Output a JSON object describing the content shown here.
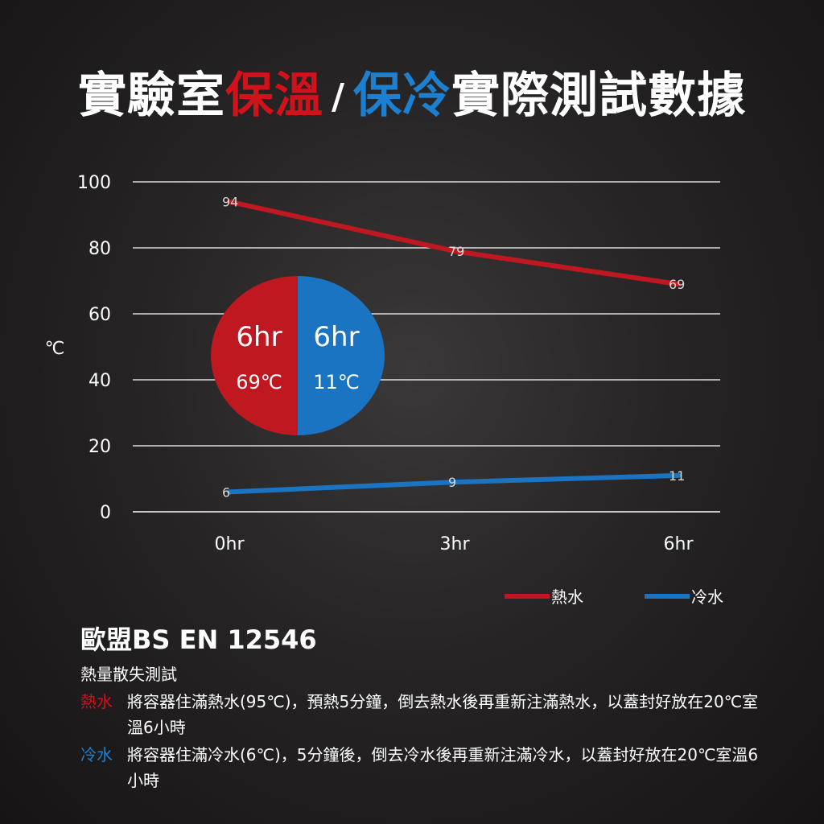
{
  "title": {
    "part1": "實驗室",
    "part2": "保溫",
    "slash": "/",
    "part3": "保冷",
    "part4": "實際測試數據"
  },
  "colors": {
    "hot": "#c01820",
    "cold": "#1a74c2"
  },
  "chart_data": {
    "type": "line",
    "categories": [
      "0hr",
      "3hr",
      "6hr"
    ],
    "ylabel": "℃",
    "ylim": [
      0,
      100
    ],
    "yticks": [
      0,
      20,
      40,
      60,
      80,
      100
    ],
    "grid": true,
    "legend_position": "bottom-right",
    "series": [
      {
        "name": "熱水",
        "color": "#c01820",
        "values": [
          94,
          79,
          69
        ]
      },
      {
        "name": "冷水",
        "color": "#1a74c2",
        "values": [
          6,
          9,
          11
        ]
      }
    ]
  },
  "badge": {
    "hot": {
      "time": "6hr",
      "temp": "69℃"
    },
    "cold": {
      "time": "6hr",
      "temp": "11℃"
    }
  },
  "legend": {
    "hot": "熱水",
    "cold": "冷水"
  },
  "standard": "歐盟BS EN 12546",
  "test_name": "熱量散失測試",
  "notes": [
    {
      "label": "熱水",
      "text": "將容器住滿熱水(95℃)，預熱5分鐘，倒去熱水後再重新注滿熱水，以蓋封好放在20℃室溫6小時"
    },
    {
      "label": "冷水",
      "text": "將容器住滿冷水(6℃)，5分鐘後，倒去冷水後再重新注滿冷水，以蓋封好放在20℃室溫6小時"
    }
  ]
}
